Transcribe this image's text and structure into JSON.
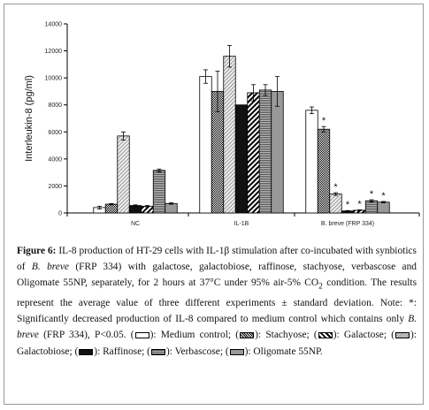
{
  "chart_data": {
    "type": "bar",
    "ylabel": "Interleukin-8 (pg/ml)",
    "ylim": [
      0,
      14000
    ],
    "yticks": [
      0,
      2000,
      4000,
      6000,
      8000,
      10000,
      12000,
      14000
    ],
    "grid": false,
    "categories": [
      "NC",
      "IL-1B",
      "B. breve (FRP 334)"
    ],
    "series": [
      {
        "name": "Medium control",
        "values": [
          400,
          10100,
          7600
        ],
        "errors": [
          100,
          500,
          250
        ],
        "significant": [
          false,
          false,
          false
        ]
      },
      {
        "name": "Stachyose",
        "values": [
          650,
          9000,
          6200
        ],
        "errors": [
          50,
          1500,
          200
        ],
        "significant": [
          false,
          false,
          true
        ]
      },
      {
        "name": "Galactobiose",
        "values": [
          5700,
          11600,
          1400
        ],
        "errors": [
          300,
          800,
          100
        ],
        "significant": [
          false,
          false,
          true
        ]
      },
      {
        "name": "Raffinose",
        "values": [
          550,
          8000,
          150
        ],
        "errors": [
          50,
          0,
          30
        ],
        "significant": [
          false,
          false,
          true
        ]
      },
      {
        "name": "Galactose",
        "values": [
          500,
          8900,
          200
        ],
        "errors": [
          50,
          600,
          30
        ],
        "significant": [
          false,
          false,
          true
        ]
      },
      {
        "name": "Verbascose",
        "values": [
          3150,
          9100,
          900
        ],
        "errors": [
          100,
          400,
          80
        ],
        "significant": [
          false,
          false,
          true
        ]
      },
      {
        "name": "Oligomate 55NP",
        "values": [
          700,
          9000,
          800
        ],
        "errors": [
          50,
          1100,
          50
        ],
        "significant": [
          false,
          false,
          true
        ]
      }
    ],
    "significance_marker": "*"
  },
  "caption": {
    "label": "Figure 6:",
    "p1": " IL-8 production of HT-29 cells with IL-1β stimulation after co-incubated with synbiotics of ",
    "p1_it": "B. breve",
    "p2": " (FRP 334) with galactose, galactobiose, raffinose, stachyose, verbascose and Oligomate 55NP, separately, for 2 hours at 37°C under 95% air-5% CO",
    "p2_sub": "2",
    "p3": " condition. The results represent the average value of three different experiments ± standard deviation. Note: *: Significantly decreased production of IL-8 compared to medium control which contains only ",
    "p3_it": "B. breve",
    "p4": " (FRP 334), P<0.05. (",
    "legend": [
      {
        "label": "): Medium control; (",
        "pattern": "medium"
      },
      {
        "label": "): Stachyose; (",
        "pattern": "stachyose"
      },
      {
        "label": "): Galactose; (",
        "pattern": "galactose"
      },
      {
        "label": "): Galactobiose; (",
        "pattern": "galactobiose"
      },
      {
        "label": "): Raffinose; (",
        "pattern": "raffinose"
      },
      {
        "label": "): Verbascose; (",
        "pattern": "verbascose"
      },
      {
        "label": "): Oligomate 55NP.",
        "pattern": "oligomate"
      }
    ]
  }
}
